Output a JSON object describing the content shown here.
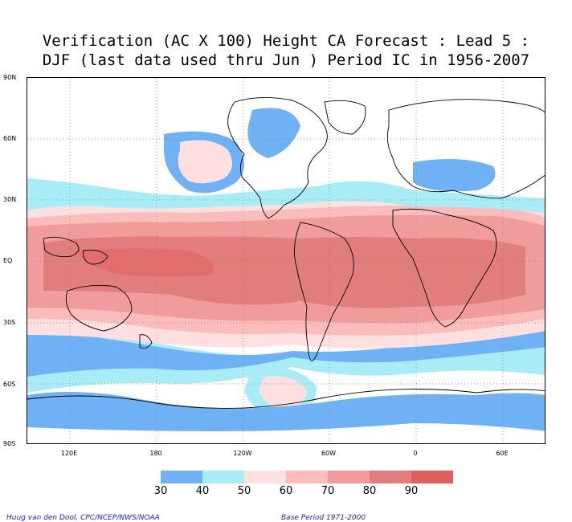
{
  "title": {
    "line1": "Verification (AC X 100) Height CA Forecast : Lead 5 :",
    "line2": "DJF (last data used thru Jun ) Period IC in 1956-2007"
  },
  "lat_labels": [
    "90N",
    "60N",
    "30N",
    "EQ",
    "30S",
    "60S",
    "90S"
  ],
  "lon_labels": [
    "120E",
    "180",
    "120W",
    "60W",
    "0",
    "60E"
  ],
  "legend": {
    "labels": [
      "30",
      "40",
      "50",
      "60",
      "70",
      "80",
      "90"
    ],
    "colors": [
      "#6eb1f5",
      "#a8ecf6",
      "#ffe0e0",
      "#fbbcbc",
      "#f19c9c",
      "#e27d7d",
      "#e06060"
    ]
  },
  "footer": {
    "left": "Huug van den Dool, CPC/NCEP/NWS/NOAA",
    "right": "Base Period 1971-2000"
  },
  "icons": {
    "coastline": "coastline-icon"
  }
}
